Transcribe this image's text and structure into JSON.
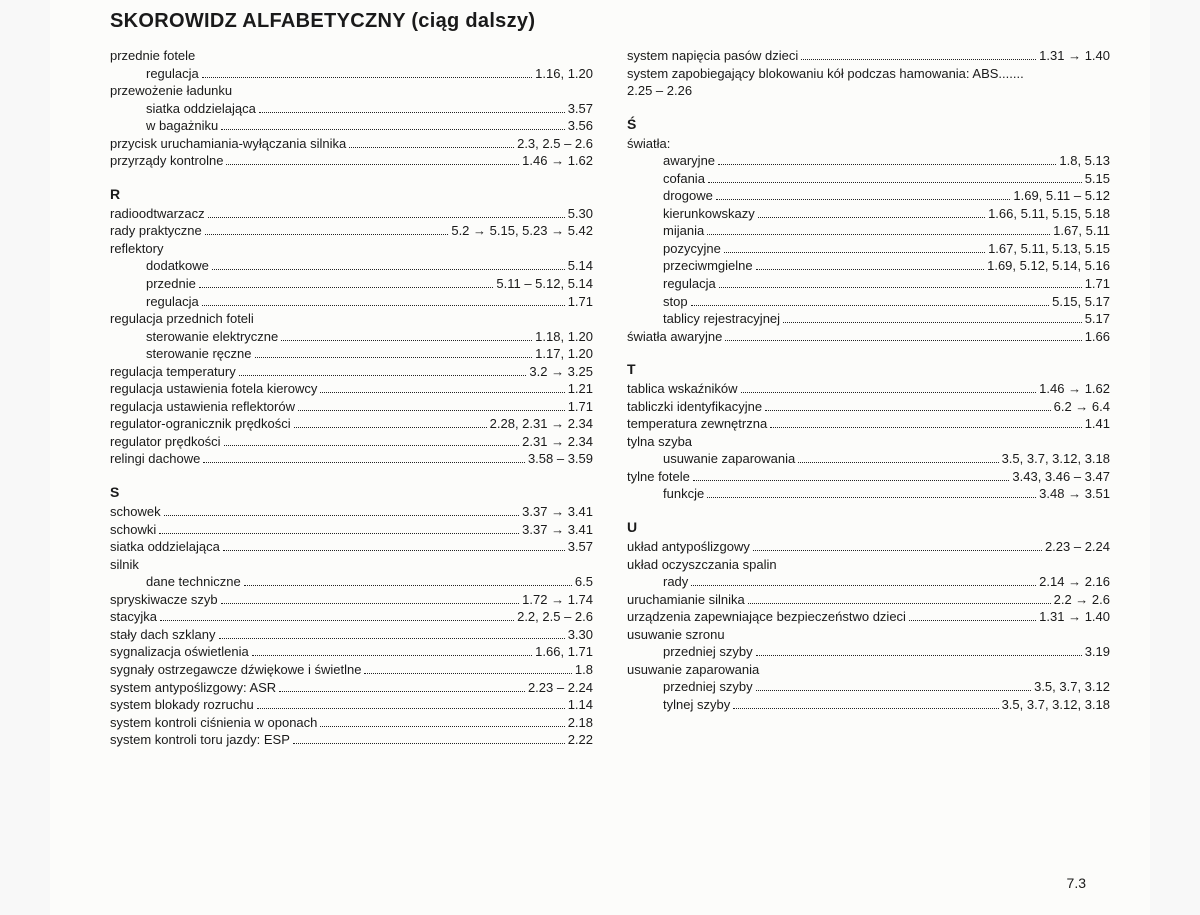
{
  "title": "SKOROWIDZ ALFABETYCZNY (ciąg dalszy)",
  "page_number": "7.3",
  "arrow": "→",
  "left": [
    {
      "type": "plain",
      "text": "przednie fotele"
    },
    {
      "type": "entry",
      "indent": 1,
      "label": "regulacja",
      "pages": "1.16, 1.20"
    },
    {
      "type": "plain",
      "text": "przewożenie ładunku"
    },
    {
      "type": "entry",
      "indent": 1,
      "label": "siatka oddzielająca",
      "pages": "3.57"
    },
    {
      "type": "entry",
      "indent": 1,
      "label": "w bagażniku",
      "pages": "3.56"
    },
    {
      "type": "entry",
      "label": "przycisk uruchamiania-wyłączania silnika",
      "pages": "2.3, 2.5 – 2.6"
    },
    {
      "type": "entry",
      "label": "przyrządy kontrolne",
      "pages": "1.46 → 1.62"
    },
    {
      "type": "letter",
      "text": "R"
    },
    {
      "type": "entry",
      "label": "radioodtwarzacz",
      "pages": "5.30"
    },
    {
      "type": "entry",
      "label": "rady praktyczne",
      "pages": "5.2 → 5.15, 5.23 → 5.42"
    },
    {
      "type": "plain",
      "text": "reflektory"
    },
    {
      "type": "entry",
      "indent": 1,
      "label": "dodatkowe",
      "pages": "5.14"
    },
    {
      "type": "entry",
      "indent": 1,
      "label": "przednie",
      "pages": "5.11 – 5.12, 5.14"
    },
    {
      "type": "entry",
      "indent": 1,
      "label": "regulacja",
      "pages": "1.71"
    },
    {
      "type": "plain",
      "text": "regulacja przednich foteli"
    },
    {
      "type": "entry",
      "indent": 1,
      "label": "sterowanie elektryczne",
      "pages": "1.18, 1.20"
    },
    {
      "type": "entry",
      "indent": 1,
      "label": "sterowanie ręczne",
      "pages": "1.17, 1.20"
    },
    {
      "type": "entry",
      "label": "regulacja temperatury",
      "pages": "3.2 → 3.25"
    },
    {
      "type": "entry",
      "label": "regulacja ustawienia fotela kierowcy",
      "pages": "1.21"
    },
    {
      "type": "entry",
      "label": "regulacja ustawienia reflektorów",
      "pages": "1.71"
    },
    {
      "type": "entry",
      "label": "regulator-ogranicznik prędkości",
      "pages": "2.28, 2.31 → 2.34"
    },
    {
      "type": "entry",
      "label": "regulator prędkości",
      "pages": "2.31 → 2.34"
    },
    {
      "type": "entry",
      "label": "relingi dachowe",
      "pages": "3.58 – 3.59"
    },
    {
      "type": "letter",
      "text": "S"
    },
    {
      "type": "entry",
      "label": "schowek",
      "pages": "3.37 → 3.41"
    },
    {
      "type": "entry",
      "label": "schowki",
      "pages": "3.37 → 3.41"
    },
    {
      "type": "entry",
      "label": "siatka oddzielająca",
      "pages": "3.57"
    },
    {
      "type": "plain",
      "text": "silnik"
    },
    {
      "type": "entry",
      "indent": 1,
      "label": "dane techniczne",
      "pages": "6.5"
    },
    {
      "type": "entry",
      "label": "spryskiwacze szyb",
      "pages": "1.72 → 1.74"
    },
    {
      "type": "entry",
      "label": "stacyjka",
      "pages": "2.2, 2.5 – 2.6"
    },
    {
      "type": "entry",
      "label": "stały dach szklany",
      "pages": "3.30"
    },
    {
      "type": "entry",
      "label": "sygnalizacja oświetlenia",
      "pages": "1.66, 1.71"
    },
    {
      "type": "entry",
      "label": "sygnały ostrzegawcze dźwiękowe i świetlne",
      "pages": "1.8"
    },
    {
      "type": "entry",
      "label": "system antypoślizgowy: ASR",
      "pages": "2.23 – 2.24"
    },
    {
      "type": "entry",
      "label": "system blokady rozruchu",
      "pages": "1.14"
    },
    {
      "type": "entry",
      "label": "system kontroli ciśnienia w oponach",
      "pages": "2.18"
    },
    {
      "type": "entry",
      "label": "system kontroli toru jazdy: ESP",
      "pages": "2.22"
    }
  ],
  "right": [
    {
      "type": "entry",
      "label": "system napięcia pasów dzieci",
      "pages": "1.31 → 1.40"
    },
    {
      "type": "plain",
      "text": "system zapobiegający blokowaniu kół podczas hamowania: ABS......."
    },
    {
      "type": "plain",
      "text": "2.25 – 2.26"
    },
    {
      "type": "letter",
      "text": "Ś"
    },
    {
      "type": "plain",
      "text": "światła:"
    },
    {
      "type": "entry",
      "indent": 1,
      "label": "awaryjne",
      "pages": "1.8, 5.13"
    },
    {
      "type": "entry",
      "indent": 1,
      "label": "cofania",
      "pages": "5.15"
    },
    {
      "type": "entry",
      "indent": 1,
      "label": "drogowe",
      "pages": "1.69, 5.11 – 5.12"
    },
    {
      "type": "entry",
      "indent": 1,
      "label": "kierunkowskazy",
      "pages": "1.66, 5.11, 5.15, 5.18"
    },
    {
      "type": "entry",
      "indent": 1,
      "label": "mijania",
      "pages": "1.67, 5.11"
    },
    {
      "type": "entry",
      "indent": 1,
      "label": "pozycyjne",
      "pages": "1.67, 5.11, 5.13, 5.15"
    },
    {
      "type": "entry",
      "indent": 1,
      "label": "przeciwmgielne",
      "pages": "1.69, 5.12, 5.14, 5.16"
    },
    {
      "type": "entry",
      "indent": 1,
      "label": "regulacja",
      "pages": "1.71"
    },
    {
      "type": "entry",
      "indent": 1,
      "label": "stop",
      "pages": "5.15, 5.17"
    },
    {
      "type": "entry",
      "indent": 1,
      "label": "tablicy rejestracyjnej",
      "pages": "5.17"
    },
    {
      "type": "entry",
      "label": "światła awaryjne",
      "pages": "1.66"
    },
    {
      "type": "letter",
      "text": "T"
    },
    {
      "type": "entry",
      "label": "tablica wskaźników",
      "pages": "1.46 → 1.62"
    },
    {
      "type": "entry",
      "label": "tabliczki identyfikacyjne",
      "pages": "6.2 → 6.4"
    },
    {
      "type": "entry",
      "label": "temperatura zewnętrzna",
      "pages": "1.41"
    },
    {
      "type": "plain",
      "text": "tylna szyba"
    },
    {
      "type": "entry",
      "indent": 1,
      "label": "usuwanie zaparowania",
      "pages": "3.5, 3.7, 3.12, 3.18"
    },
    {
      "type": "entry",
      "label": "tylne fotele",
      "pages": "3.43, 3.46 – 3.47"
    },
    {
      "type": "entry",
      "indent": 1,
      "label": "funkcje",
      "pages": "3.48 → 3.51"
    },
    {
      "type": "letter",
      "text": "U"
    },
    {
      "type": "entry",
      "label": "układ antypoślizgowy",
      "pages": "2.23 – 2.24"
    },
    {
      "type": "plain",
      "text": "układ oczyszczania spalin"
    },
    {
      "type": "entry",
      "indent": 1,
      "label": "rady",
      "pages": "2.14 → 2.16"
    },
    {
      "type": "entry",
      "label": "uruchamianie silnika",
      "pages": "2.2 → 2.6"
    },
    {
      "type": "entry",
      "label": "urządzenia zapewniające bezpieczeństwo dzieci",
      "pages": "1.31 → 1.40"
    },
    {
      "type": "plain",
      "text": "usuwanie szronu"
    },
    {
      "type": "entry",
      "indent": 1,
      "label": "przedniej szyby",
      "pages": "3.19"
    },
    {
      "type": "plain",
      "text": "usuwanie zaparowania"
    },
    {
      "type": "entry",
      "indent": 1,
      "label": "przedniej szyby",
      "pages": "3.5, 3.7, 3.12"
    },
    {
      "type": "entry",
      "indent": 1,
      "label": "tylnej szyby",
      "pages": "3.5, 3.7, 3.12, 3.18"
    }
  ]
}
